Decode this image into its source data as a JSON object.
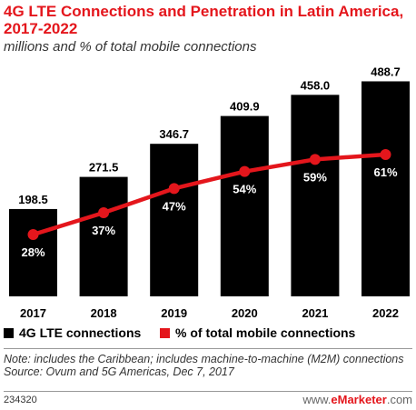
{
  "header": {
    "title": "4G LTE Connections and Penetration in Latin America, 2017-2022",
    "subtitle": "millions and % of total mobile connections"
  },
  "chart_data": {
    "type": "bar",
    "categories": [
      "2017",
      "2018",
      "2019",
      "2020",
      "2021",
      "2022"
    ],
    "series": [
      {
        "name": "4G LTE connections",
        "type": "bar",
        "color": "#000000",
        "values": [
          198.5,
          271.5,
          346.7,
          409.9,
          458.0,
          488.7
        ],
        "labels": [
          "198.5",
          "271.5",
          "346.7",
          "409.9",
          "458.0",
          "488.7"
        ]
      },
      {
        "name": "% of total mobile connections",
        "type": "line",
        "color": "#e4161c",
        "values": [
          28,
          37,
          47,
          54,
          59,
          61
        ],
        "labels": [
          "28%",
          "37%",
          "47%",
          "54%",
          "59%",
          "61%"
        ]
      }
    ],
    "ylim": [
      0,
      500
    ],
    "ylim_pct": [
      0,
      100
    ],
    "grid": false,
    "legend": "bottom"
  },
  "legend": {
    "bar_label": "4G LTE connections",
    "line_label": "% of total mobile connections"
  },
  "note": {
    "line1": "Note: includes the Caribbean; includes machine-to-machine (M2M) connections",
    "line2": "Source: Ovum and 5G Americas, Dec 7, 2017"
  },
  "footer": {
    "chart_id": "234320",
    "brand_prefix": "www.",
    "brand_name": "eMarketer",
    "brand_suffix": ".com"
  }
}
